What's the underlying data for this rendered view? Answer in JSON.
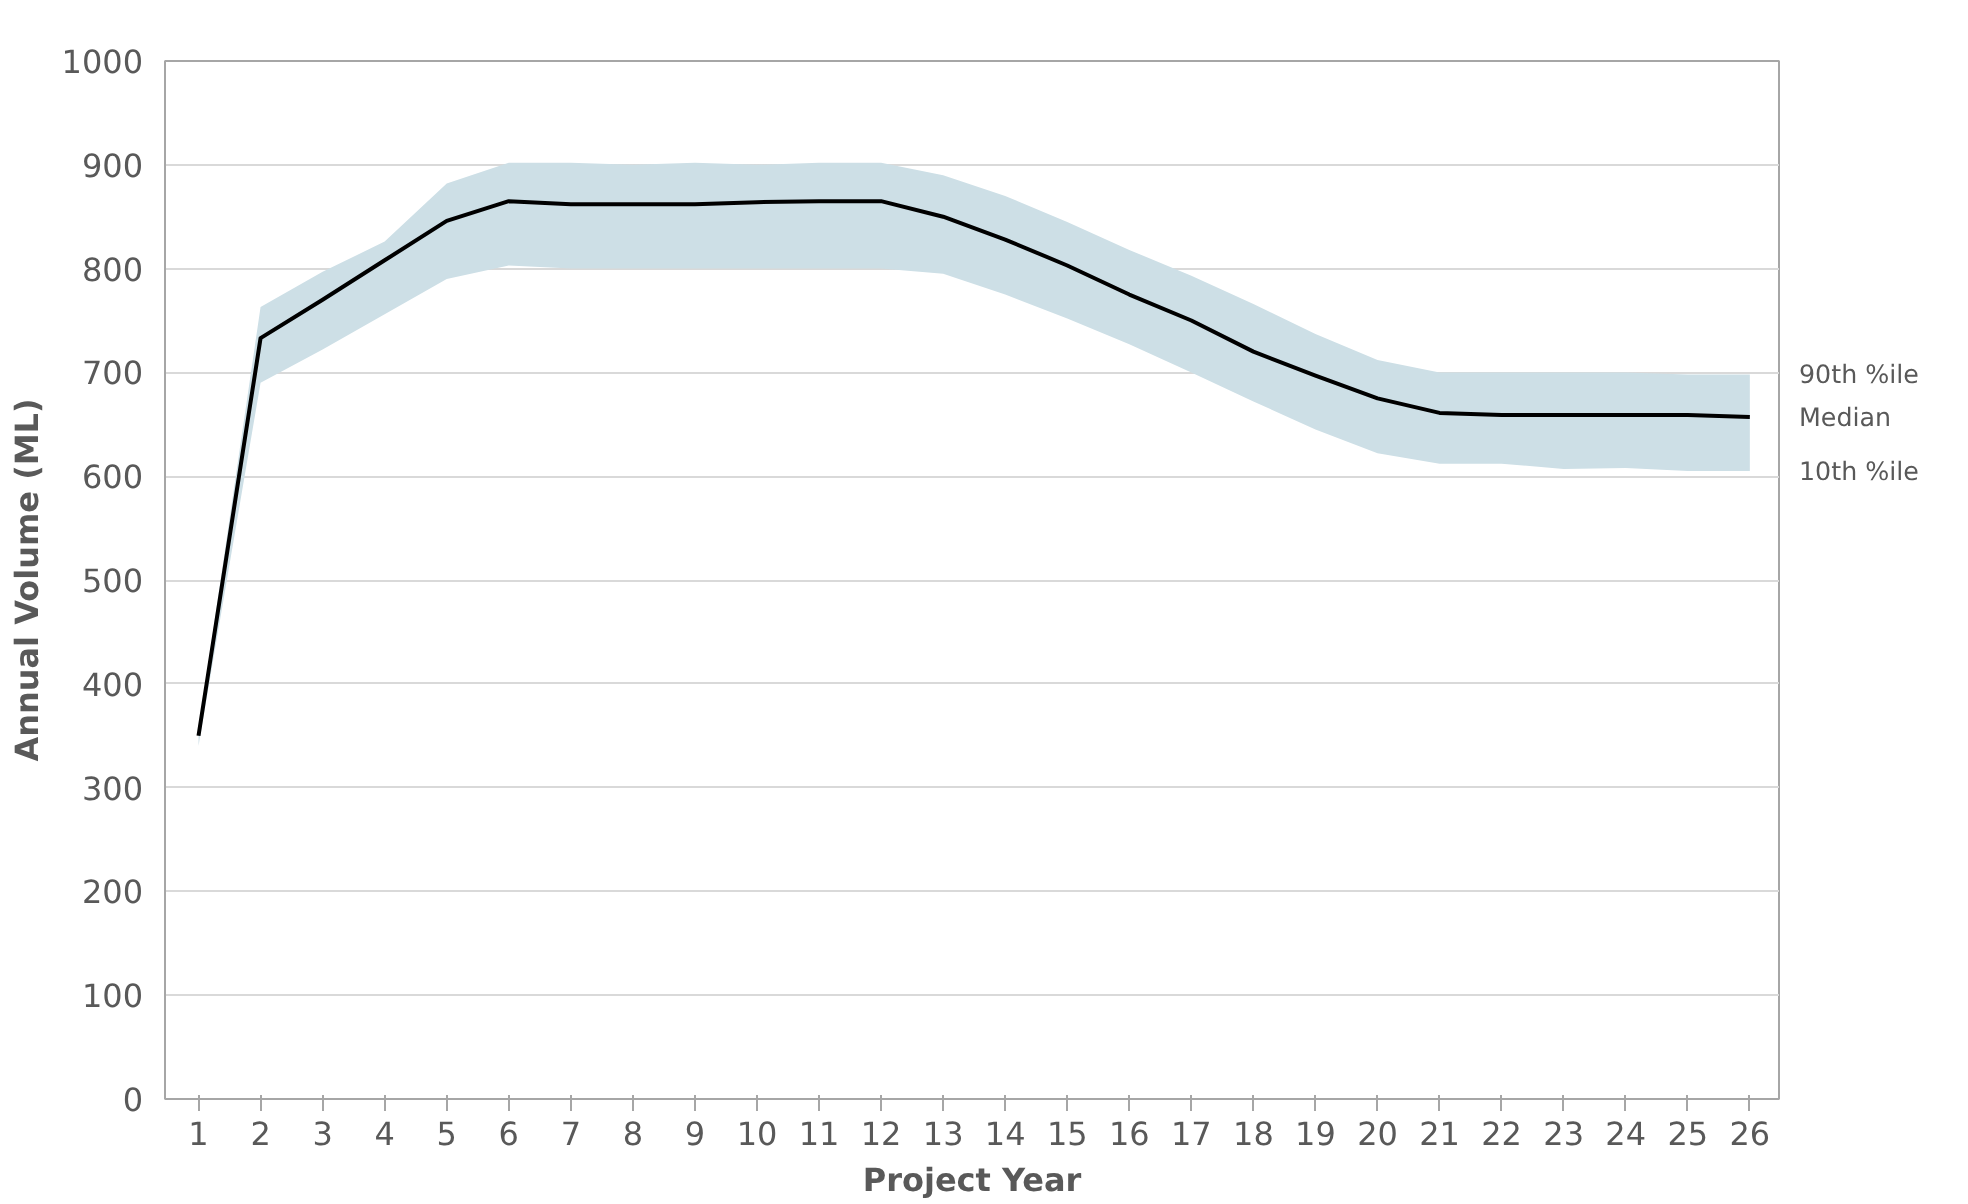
{
  "chart_data": {
    "type": "line",
    "xlabel": "Project Year",
    "ylabel": "Annual Volume (ML)",
    "x": [
      1,
      2,
      3,
      4,
      5,
      6,
      7,
      8,
      9,
      10,
      11,
      12,
      13,
      14,
      15,
      16,
      17,
      18,
      19,
      20,
      21,
      22,
      23,
      24,
      25,
      26
    ],
    "series": [
      {
        "color": "#000000",
        "values": [
          350,
          733,
          770,
          808,
          846,
          865,
          862,
          862,
          862,
          864,
          865,
          865,
          850,
          828,
          803,
          775,
          750,
          720,
          697,
          675,
          661,
          659,
          659,
          659,
          659,
          657
        ],
        "upper": [
          355,
          763,
          797,
          826,
          882,
          902,
          902,
          900,
          902,
          900,
          902,
          902,
          890,
          870,
          845,
          818,
          793,
          766,
          737,
          712,
          700,
          700,
          700,
          700,
          698,
          698
        ],
        "lower": [
          340,
          690,
          722,
          756,
          790,
          803,
          800,
          800,
          800,
          800,
          800,
          800,
          795,
          775,
          752,
          727,
          700,
          672,
          645,
          622,
          612,
          612,
          607,
          608,
          605,
          605
        ]
      }
    ],
    "annotations": [
      "90th %ile",
      "Median",
      "10th %ile"
    ],
    "xlim": [
      0.46,
      26.47
    ],
    "ylim": [
      0,
      1000
    ],
    "xticks": [
      1,
      2,
      3,
      4,
      5,
      6,
      7,
      8,
      9,
      10,
      11,
      12,
      13,
      14,
      15,
      16,
      17,
      18,
      19,
      20,
      21,
      22,
      23,
      24,
      25,
      26
    ],
    "yticks": [
      0,
      100,
      200,
      300,
      400,
      500,
      600,
      700,
      800,
      900,
      1000
    ],
    "grid": "y",
    "marker": "none",
    "line_style": "solid"
  }
}
